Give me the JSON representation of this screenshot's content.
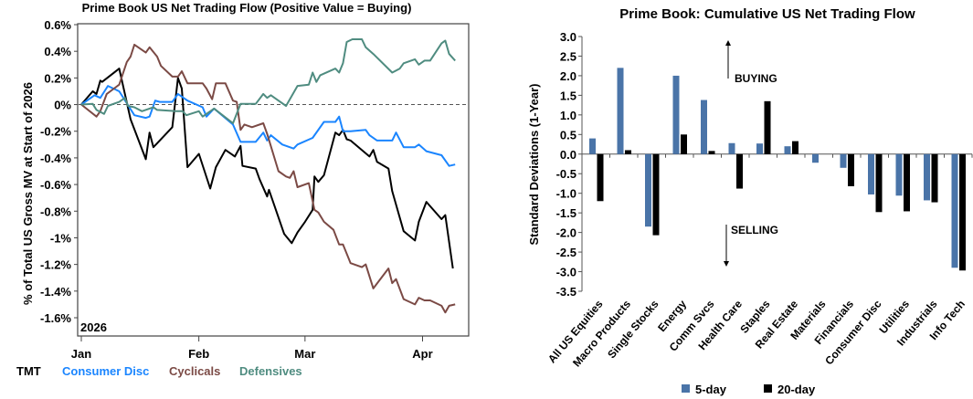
{
  "chart_data": [
    {
      "type": "line",
      "title": "Prime Book US Net Trading Flow (Positive Value = Buying)",
      "ylabel": "% of Total US Gross MV at Start of 2026",
      "xlabel": "",
      "year_label": "2026",
      "x_unit": "days since Jan 1, 2026",
      "xlim": [
        -1,
        102
      ],
      "ylim": [
        -1.6,
        0.6
      ],
      "yticks": [
        0.6,
        0.4,
        0.2,
        0,
        -0.2,
        -0.4,
        -0.6,
        -0.8,
        -1,
        -1.2,
        -1.4,
        -1.6
      ],
      "ytick_labels": [
        "0.6%",
        "0.4%",
        "0.2%",
        "0%",
        "-0.2%",
        "-0.4%",
        "-0.6%",
        "-0.8%",
        "-1%",
        "-1.2%",
        "-1.4%",
        "-1.6%"
      ],
      "xticks": [
        {
          "label": "Jan",
          "day": 0
        },
        {
          "label": "Feb",
          "day": 31
        },
        {
          "label": "Mar",
          "day": 59
        },
        {
          "label": "Apr",
          "day": 90
        }
      ],
      "reference_line": 0,
      "legend_placement": "bottom",
      "series": [
        {
          "name": "TMT",
          "color": "#000000",
          "points": [
            [
              0,
              0
            ],
            [
              3,
              0.1
            ],
            [
              4,
              0.08
            ],
            [
              5,
              0.18
            ],
            [
              5.5,
              0.17
            ],
            [
              10,
              0.27
            ],
            [
              13,
              -0.11
            ],
            [
              17,
              -0.41
            ],
            [
              18,
              -0.21
            ],
            [
              19,
              -0.32
            ],
            [
              20,
              -0.29
            ],
            [
              24,
              -0.17
            ],
            [
              25.5,
              0.2
            ],
            [
              26.5,
              0.12
            ],
            [
              28,
              -0.47
            ],
            [
              31,
              -0.37
            ],
            [
              34,
              -0.63
            ],
            [
              35.5,
              -0.47
            ],
            [
              38,
              -0.34
            ],
            [
              40.5,
              -0.39
            ],
            [
              42,
              -0.31
            ],
            [
              42.5,
              -0.46
            ],
            [
              46,
              -0.48
            ],
            [
              47,
              -0.56
            ],
            [
              49,
              -0.69
            ],
            [
              49.5,
              -0.64
            ],
            [
              53.5,
              -0.97
            ],
            [
              55.5,
              -1.04
            ],
            [
              57,
              -0.96
            ],
            [
              59,
              -0.88
            ],
            [
              61,
              -0.79
            ],
            [
              61.5,
              -0.54
            ],
            [
              62.5,
              -0.58
            ],
            [
              64,
              -0.53
            ],
            [
              67,
              -0.21
            ],
            [
              68,
              -0.23
            ],
            [
              69,
              -0.19
            ],
            [
              70,
              -0.26
            ],
            [
              71,
              -0.27
            ],
            [
              76,
              -0.39
            ],
            [
              77,
              -0.34
            ],
            [
              78,
              -0.43
            ],
            [
              81,
              -0.48
            ],
            [
              82,
              -0.65
            ],
            [
              85,
              -0.95
            ],
            [
              88,
              -1.02
            ],
            [
              89,
              -0.88
            ],
            [
              91,
              -0.73
            ],
            [
              95,
              -0.86
            ],
            [
              96,
              -0.83
            ],
            [
              98,
              -1.23
            ]
          ]
        },
        {
          "name": "Consumer Disc",
          "color": "#1a85ff",
          "points": [
            [
              0,
              0
            ],
            [
              3.5,
              0.07
            ],
            [
              5,
              0.05
            ],
            [
              7,
              0.14
            ],
            [
              10,
              0.1
            ],
            [
              14,
              -0.08
            ],
            [
              17,
              -0.1
            ],
            [
              18,
              -0.09
            ],
            [
              19.5,
              0.03
            ],
            [
              20.7,
              0.02
            ],
            [
              24,
              0.02
            ],
            [
              25.5,
              0.08
            ],
            [
              28,
              0.03
            ],
            [
              32,
              -0.02
            ],
            [
              33,
              -0.09
            ],
            [
              35,
              -0.03
            ],
            [
              40,
              -0.15
            ],
            [
              42,
              -0.28
            ],
            [
              46,
              -0.28
            ],
            [
              48,
              -0.21
            ],
            [
              49,
              -0.27
            ],
            [
              50,
              -0.23
            ],
            [
              53,
              -0.3
            ],
            [
              56,
              -0.33
            ],
            [
              57,
              -0.3
            ],
            [
              61,
              -0.25
            ],
            [
              64,
              -0.13
            ],
            [
              67,
              -0.13
            ],
            [
              68,
              -0.09
            ],
            [
              69,
              -0.2
            ],
            [
              71,
              -0.2
            ],
            [
              75,
              -0.19
            ],
            [
              76,
              -0.23
            ],
            [
              78,
              -0.27
            ],
            [
              82,
              -0.27
            ],
            [
              83,
              -0.21
            ],
            [
              85,
              -0.32
            ],
            [
              88,
              -0.32
            ],
            [
              89,
              -0.3
            ],
            [
              91,
              -0.35
            ],
            [
              95,
              -0.38
            ],
            [
              97,
              -0.46
            ],
            [
              98.6,
              -0.45
            ]
          ]
        },
        {
          "name": "Cyclicals",
          "color": "#7b4a45",
          "points": [
            [
              0,
              0
            ],
            [
              4,
              -0.09
            ],
            [
              5,
              -0.05
            ],
            [
              6.7,
              0.08
            ],
            [
              10,
              0.15
            ],
            [
              12,
              0.32
            ],
            [
              13,
              0.36
            ],
            [
              14,
              0.45
            ],
            [
              17,
              0.39
            ],
            [
              18,
              0.43
            ],
            [
              20,
              0.36
            ],
            [
              21,
              0.29
            ],
            [
              24,
              0.21
            ],
            [
              25.5,
              0.21
            ],
            [
              26.5,
              0.25
            ],
            [
              28,
              0.16
            ],
            [
              32,
              0.16
            ],
            [
              33,
              0.12
            ],
            [
              34.5,
              0.04
            ],
            [
              35.5,
              0.16
            ],
            [
              38,
              0.16
            ],
            [
              40,
              0.03
            ],
            [
              41,
              0.02
            ],
            [
              42,
              -0.19
            ],
            [
              43,
              -0.15
            ],
            [
              45,
              -0.17
            ],
            [
              48,
              -0.14
            ],
            [
              49,
              -0.22
            ],
            [
              52,
              -0.5
            ],
            [
              54,
              -0.54
            ],
            [
              55,
              -0.55
            ],
            [
              56,
              -0.5
            ],
            [
              57,
              -0.62
            ],
            [
              60,
              -0.59
            ],
            [
              61.5,
              -0.79
            ],
            [
              62.5,
              -0.81
            ],
            [
              64,
              -0.88
            ],
            [
              66.5,
              -0.94
            ],
            [
              68,
              -1.05
            ],
            [
              69,
              -1.05
            ],
            [
              71,
              -1.19
            ],
            [
              74,
              -1.22
            ],
            [
              75,
              -1.2
            ],
            [
              77,
              -1.38
            ],
            [
              81,
              -1.23
            ],
            [
              82,
              -1.34
            ],
            [
              83,
              -1.31
            ],
            [
              85,
              -1.46
            ],
            [
              88,
              -1.5
            ],
            [
              89,
              -1.45
            ],
            [
              90.5,
              -1.47
            ],
            [
              92,
              -1.47
            ],
            [
              95,
              -1.51
            ],
            [
              96,
              -1.56
            ],
            [
              97,
              -1.51
            ],
            [
              98.6,
              -1.5
            ]
          ]
        },
        {
          "name": "Defensives",
          "color": "#4f8c80",
          "points": [
            [
              0,
              0
            ],
            [
              3,
              0.005
            ],
            [
              4,
              -0.04
            ],
            [
              6,
              -0.07
            ],
            [
              7,
              -0.01
            ],
            [
              10,
              0.02
            ],
            [
              11.5,
              0.05
            ],
            [
              12.3,
              -0.01
            ],
            [
              14,
              -0.02
            ],
            [
              16,
              -0.05
            ],
            [
              18,
              -0.03
            ],
            [
              19,
              -0.02
            ],
            [
              20,
              -0.04
            ],
            [
              25,
              -0.05
            ],
            [
              26.7,
              -0.05
            ],
            [
              27.7,
              -0.08
            ],
            [
              31,
              -0.05
            ],
            [
              32,
              -0.09
            ],
            [
              35,
              -0.03
            ],
            [
              40,
              -0.14
            ],
            [
              42,
              0.005
            ],
            [
              46,
              0.005
            ],
            [
              48,
              0.08
            ],
            [
              49,
              0.05
            ],
            [
              50,
              0.07
            ],
            [
              52,
              0.03
            ],
            [
              54,
              -0.01
            ],
            [
              57,
              0.14
            ],
            [
              60,
              0.15
            ],
            [
              61,
              0.24
            ],
            [
              62,
              0.17
            ],
            [
              63,
              0.22
            ],
            [
              67,
              0.27
            ],
            [
              68,
              0.24
            ],
            [
              69,
              0.31
            ],
            [
              70,
              0.47
            ],
            [
              71.5,
              0.49
            ],
            [
              74,
              0.49
            ],
            [
              75,
              0.43
            ],
            [
              77,
              0.38
            ],
            [
              82,
              0.24
            ],
            [
              84,
              0.27
            ],
            [
              85,
              0.31
            ],
            [
              88,
              0.34
            ],
            [
              89,
              0.3
            ],
            [
              90.5,
              0.33
            ],
            [
              92,
              0.33
            ],
            [
              95,
              0.46
            ],
            [
              96,
              0.48
            ],
            [
              97,
              0.38
            ],
            [
              98.6,
              0.33
            ]
          ]
        }
      ]
    },
    {
      "type": "bar",
      "title": "Prime Book: Cumulative US Net Trading Flow",
      "ylabel": "Standard Deviations (1-Year)",
      "xlabel": "",
      "ylim": [
        -3.5,
        3.0
      ],
      "yticks": [
        "3.0",
        "2.5",
        "2.0",
        "1.5",
        "1.0",
        "0.5",
        "0.0",
        "-0.5",
        "-1.0",
        "-1.5",
        "-2.0",
        "-2.5",
        "-3.0",
        "-3.5"
      ],
      "annotations": {
        "buying": "BUYING",
        "selling": "SELLING"
      },
      "legend_placement": "bottom",
      "categories": [
        "All US Equities",
        "Macro Products",
        "Single Stocks",
        "Energy",
        "Comm Svcs",
        "Health Care",
        "Staples",
        "Real Estate",
        "Materials",
        "Financials",
        "Consumer Disc",
        "Utilities",
        "Industrials",
        "Info Tech"
      ],
      "series": [
        {
          "name": "5-day",
          "color": "#4a74a8",
          "values": [
            0.4,
            2.2,
            -1.85,
            2.0,
            1.38,
            0.28,
            0.27,
            0.2,
            -0.22,
            -0.35,
            -1.03,
            -1.06,
            -1.18,
            -2.9
          ]
        },
        {
          "name": "20-day",
          "color": "#000000",
          "values": [
            -1.2,
            0.1,
            -2.07,
            0.5,
            0.08,
            -0.88,
            1.35,
            0.33,
            0.0,
            -0.82,
            -1.48,
            -1.46,
            -1.23,
            -2.97
          ]
        }
      ]
    }
  ]
}
